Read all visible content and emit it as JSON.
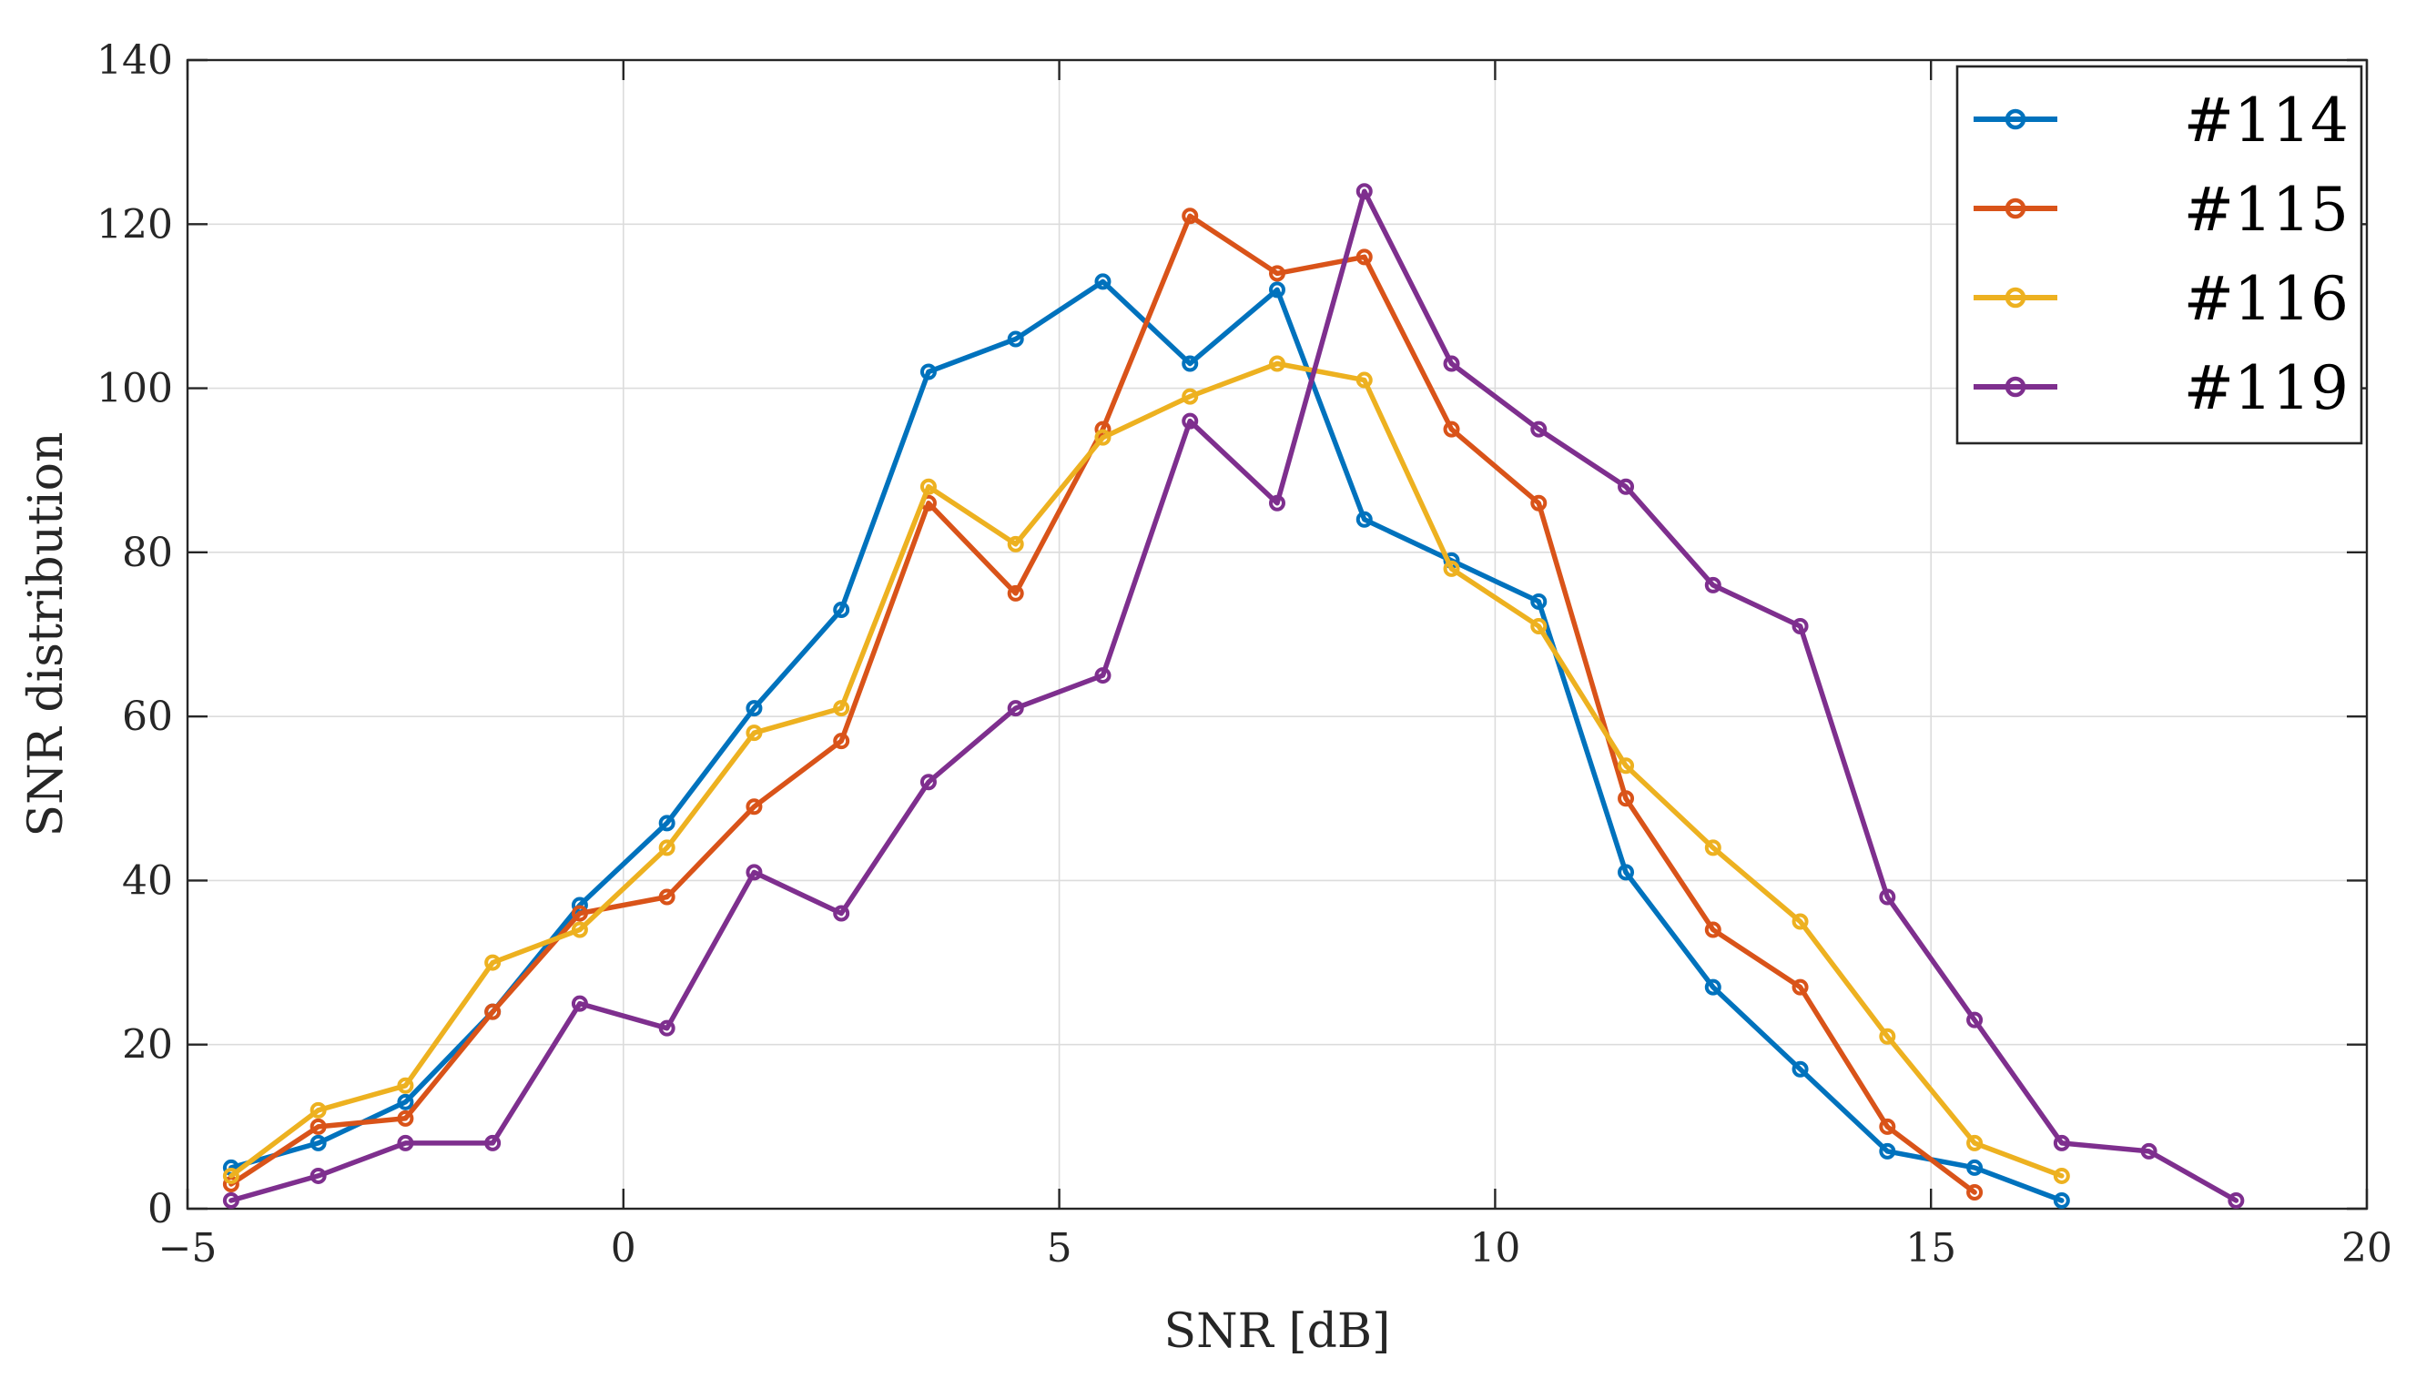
{
  "chart_data": {
    "type": "line",
    "title": "",
    "xlabel": "SNR [dB]",
    "ylabel": "SNR distribution",
    "xlim": [
      -5,
      20
    ],
    "ylim": [
      0,
      140
    ],
    "xticks": [
      -5,
      0,
      5,
      10,
      15,
      20
    ],
    "yticks": [
      0,
      20,
      40,
      60,
      80,
      100,
      120,
      140
    ],
    "xtick_labels": [
      "−5",
      "0",
      "5",
      "10",
      "15",
      "20"
    ],
    "ytick_labels": [
      "0",
      "20",
      "40",
      "60",
      "80",
      "100",
      "120",
      "140"
    ],
    "grid": true,
    "legend_position": "top-right",
    "series": [
      {
        "name": "#114",
        "color": "#0072BD",
        "x": [
          -4.5,
          -3.5,
          -2.5,
          -1.5,
          -0.5,
          0.5,
          1.5,
          2.5,
          3.5,
          4.5,
          5.5,
          6.5,
          7.5,
          8.5,
          9.5,
          10.5,
          11.5,
          12.5,
          13.5,
          14.5,
          15.5,
          16.5
        ],
        "y": [
          5,
          8,
          13,
          24,
          37,
          47,
          61,
          73,
          102,
          106,
          113,
          103,
          112,
          84,
          79,
          74,
          41,
          27,
          17,
          7,
          5,
          1
        ]
      },
      {
        "name": "#115",
        "color": "#D95319",
        "x": [
          -4.5,
          -3.5,
          -2.5,
          -1.5,
          -0.5,
          0.5,
          1.5,
          2.5,
          3.5,
          4.5,
          5.5,
          6.5,
          7.5,
          8.5,
          9.5,
          10.5,
          11.5,
          12.5,
          13.5,
          14.5,
          15.5
        ],
        "y": [
          3,
          10,
          11,
          24,
          36,
          38,
          49,
          57,
          86,
          75,
          95,
          121,
          114,
          116,
          95,
          86,
          50,
          34,
          27,
          10,
          2
        ]
      },
      {
        "name": "#116",
        "color": "#EDB120",
        "x": [
          -4.5,
          -3.5,
          -2.5,
          -1.5,
          -0.5,
          0.5,
          1.5,
          2.5,
          3.5,
          4.5,
          5.5,
          6.5,
          7.5,
          8.5,
          9.5,
          10.5,
          11.5,
          12.5,
          13.5,
          14.5,
          15.5,
          16.5
        ],
        "y": [
          4,
          12,
          15,
          30,
          34,
          44,
          58,
          61,
          88,
          81,
          94,
          99,
          103,
          101,
          78,
          71,
          54,
          44,
          35,
          21,
          8,
          4
        ]
      },
      {
        "name": "#119",
        "color": "#7E2F8E",
        "x": [
          -4.5,
          -3.5,
          -2.5,
          -1.5,
          -0.5,
          0.5,
          1.5,
          2.5,
          3.5,
          4.5,
          5.5,
          6.5,
          7.5,
          8.5,
          9.5,
          10.5,
          11.5,
          12.5,
          13.5,
          14.5,
          15.5,
          16.5,
          17.5,
          18.5
        ],
        "y": [
          1,
          4,
          8,
          8,
          25,
          22,
          41,
          36,
          52,
          61,
          65,
          96,
          86,
          124,
          103,
          95,
          88,
          76,
          71,
          38,
          23,
          8,
          7,
          1
        ]
      }
    ]
  }
}
